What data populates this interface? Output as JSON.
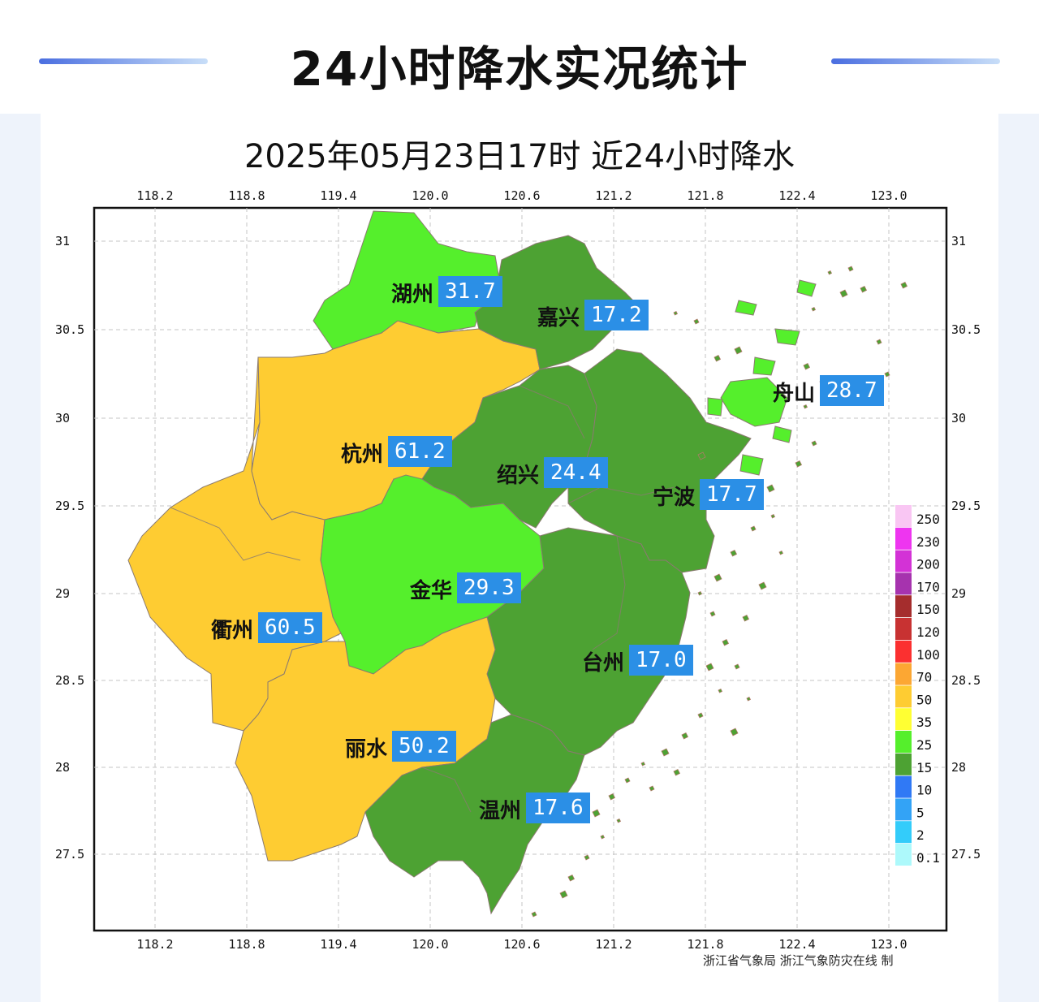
{
  "header": {
    "title": "24小时降水实况统计"
  },
  "map": {
    "title": "2025年05月23日17时  近24小时降水",
    "lon_ticks": [
      "118.2",
      "118.8",
      "119.4",
      "120.0",
      "120.6",
      "121.2",
      "121.8",
      "122.4",
      "123.0"
    ],
    "lat_ticks": [
      "31",
      "30.5",
      "30",
      "29.5",
      "29",
      "28.5",
      "28",
      "27.5"
    ],
    "credit": "浙江省气象局  浙江气象防灾在线 制"
  },
  "cities": [
    {
      "name": "湖州",
      "value": "31.7",
      "color": "#55ef2c"
    },
    {
      "name": "嘉兴",
      "value": "17.2",
      "color": "#4da233"
    },
    {
      "name": "杭州",
      "value": "61.2",
      "color": "#fecc32"
    },
    {
      "name": "绍兴",
      "value": "24.4",
      "color": "#4da233"
    },
    {
      "name": "舟山",
      "value": "28.7",
      "color": "#55ef2c"
    },
    {
      "name": "宁波",
      "value": "17.7",
      "color": "#4da233"
    },
    {
      "name": "金华",
      "value": "29.3",
      "color": "#55ef2c"
    },
    {
      "name": "衢州",
      "value": "60.5",
      "color": "#fecc32"
    },
    {
      "name": "台州",
      "value": "17.0",
      "color": "#4da233"
    },
    {
      "name": "丽水",
      "value": "50.2",
      "color": "#fecc32"
    },
    {
      "name": "温州",
      "value": "17.6",
      "color": "#4da233"
    }
  ],
  "legend": {
    "items": [
      {
        "label": "250",
        "color": "#f9c6f3"
      },
      {
        "label": "230",
        "color": "#ee35f0"
      },
      {
        "label": "200",
        "color": "#d332d6"
      },
      {
        "label": "170",
        "color": "#a633ae"
      },
      {
        "label": "150",
        "color": "#a52d2d"
      },
      {
        "label": "120",
        "color": "#c83232"
      },
      {
        "label": "100",
        "color": "#fb3030"
      },
      {
        "label": "70",
        "color": "#fca733"
      },
      {
        "label": "50",
        "color": "#fecc32"
      },
      {
        "label": "35",
        "color": "#ffff33"
      },
      {
        "label": "25",
        "color": "#55ef2c"
      },
      {
        "label": "15",
        "color": "#4da233"
      },
      {
        "label": "10",
        "color": "#3079f5"
      },
      {
        "label": "5",
        "color": "#33a3f6"
      },
      {
        "label": "2",
        "color": "#33ccfa"
      },
      {
        "label": "0.1",
        "color": "#adf9fb"
      }
    ]
  }
}
